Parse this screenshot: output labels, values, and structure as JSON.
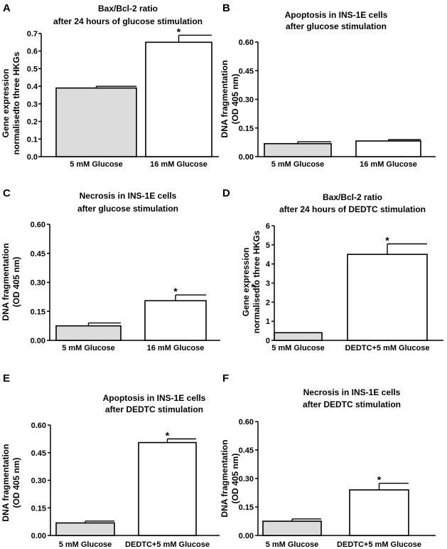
{
  "chart_data": [
    {
      "letter": "A",
      "type": "bar",
      "title": [
        "Bax/Bcl-2 ratio",
        "after 24 hours of glucose stimulation"
      ],
      "ylabel": [
        "Gene expression",
        "normalisedto three HKGs"
      ],
      "categories": [
        "5 mM Glucose",
        "16 mM Glucose"
      ],
      "values": [
        0.39,
        0.65
      ],
      "errors": [
        0.01,
        0.04
      ],
      "colors": [
        "#dcdcdc",
        "#ffffff"
      ],
      "significance": [
        "",
        "*"
      ],
      "ylim": [
        0,
        0.7
      ],
      "yticks": [
        "0.0",
        "0.1",
        "0.2",
        "0.3",
        "0.4",
        "0.5",
        "0.6",
        "0.7"
      ],
      "stray_marks": []
    },
    {
      "letter": "B",
      "type": "bar",
      "title": [
        "Apoptosis in INS-1E cells",
        "after glucose stimulation"
      ],
      "ylabel": [
        "DNA fragmentation",
        "(OD 405 nm)"
      ],
      "categories": [
        "5 mM Glucose",
        "16 mM Glucose"
      ],
      "values": [
        0.068,
        0.082
      ],
      "errors": [
        0.01,
        0.007
      ],
      "colors": [
        "#dcdcdc",
        "#ffffff"
      ],
      "significance": [
        "",
        ""
      ],
      "ylim": [
        0,
        0.6
      ],
      "yticks": [
        "0.00",
        "0.15",
        "0.30",
        "0.45",
        "0.60"
      ],
      "stray_marks": []
    },
    {
      "letter": "C",
      "type": "bar",
      "title": [
        "Necrosis in INS-1E cells",
        "after glucose stimulation"
      ],
      "ylabel": [
        "DNA fragmentation",
        "(OD 405 nm)"
      ],
      "categories": [
        "5 mM Glucose",
        "16 mM Glucose"
      ],
      "values": [
        0.075,
        0.205
      ],
      "errors": [
        0.015,
        0.03
      ],
      "colors": [
        "#dcdcdc",
        "#ffffff"
      ],
      "significance": [
        "",
        "*"
      ],
      "ylim": [
        0,
        0.6
      ],
      "yticks": [
        "0.00",
        "0.15",
        "0.30",
        "0.45",
        "0.60"
      ],
      "stray_marks": []
    },
    {
      "letter": "D",
      "type": "bar",
      "title": [
        "Bax/Bcl-2 ratio",
        "after 24 hours of DEDTC stimulation"
      ],
      "ylabel": [
        "Gene expression",
        "normalisedto three HKGs"
      ],
      "categories": [
        "5 mM Glucose",
        "DEDTC+5 mM Glucose"
      ],
      "values": [
        0.4,
        4.5
      ],
      "errors": [
        0.0,
        0.55
      ],
      "colors": [
        "#dcdcdc",
        "#ffffff"
      ],
      "significance": [
        "",
        "*"
      ],
      "ylim": [
        0,
        6
      ],
      "yticks": [
        "0",
        "1",
        "2",
        "3",
        "4",
        "5",
        "6"
      ],
      "stray_marks": [
        "*"
      ]
    },
    {
      "letter": "E",
      "type": "bar",
      "title": [
        "Apoptosis in INS-1E cells",
        "after DEDTC stimulation"
      ],
      "ylabel": [
        "DNA fragmentation",
        "(OD 405 nm)"
      ],
      "categories": [
        "5 mM Glucose",
        "DEDTC+5 mM Glucose"
      ],
      "values": [
        0.068,
        0.505
      ],
      "errors": [
        0.01,
        0.02
      ],
      "colors": [
        "#dcdcdc",
        "#ffffff"
      ],
      "significance": [
        "",
        "*"
      ],
      "ylim": [
        0,
        0.6
      ],
      "yticks": [
        "0.00",
        "0.15",
        "0.30",
        "0.45",
        "0.60"
      ],
      "stray_marks": []
    },
    {
      "letter": "F",
      "type": "bar",
      "title": [
        "Necrosis in INS-1E cells",
        "after DEDTC stimulation"
      ],
      "ylabel": [
        "DNA fragmentation",
        "(OD 405 nm)"
      ],
      "categories": [
        "5 mM Glucose",
        "DEDTC+5 mM Glucose"
      ],
      "values": [
        0.075,
        0.24
      ],
      "errors": [
        0.012,
        0.035
      ],
      "colors": [
        "#dcdcdc",
        "#ffffff"
      ],
      "significance": [
        "",
        "*"
      ],
      "ylim": [
        0,
        0.6
      ],
      "yticks": [
        "0.00",
        "0.15",
        "0.30",
        "0.45",
        "0.60"
      ],
      "stray_marks": []
    }
  ]
}
